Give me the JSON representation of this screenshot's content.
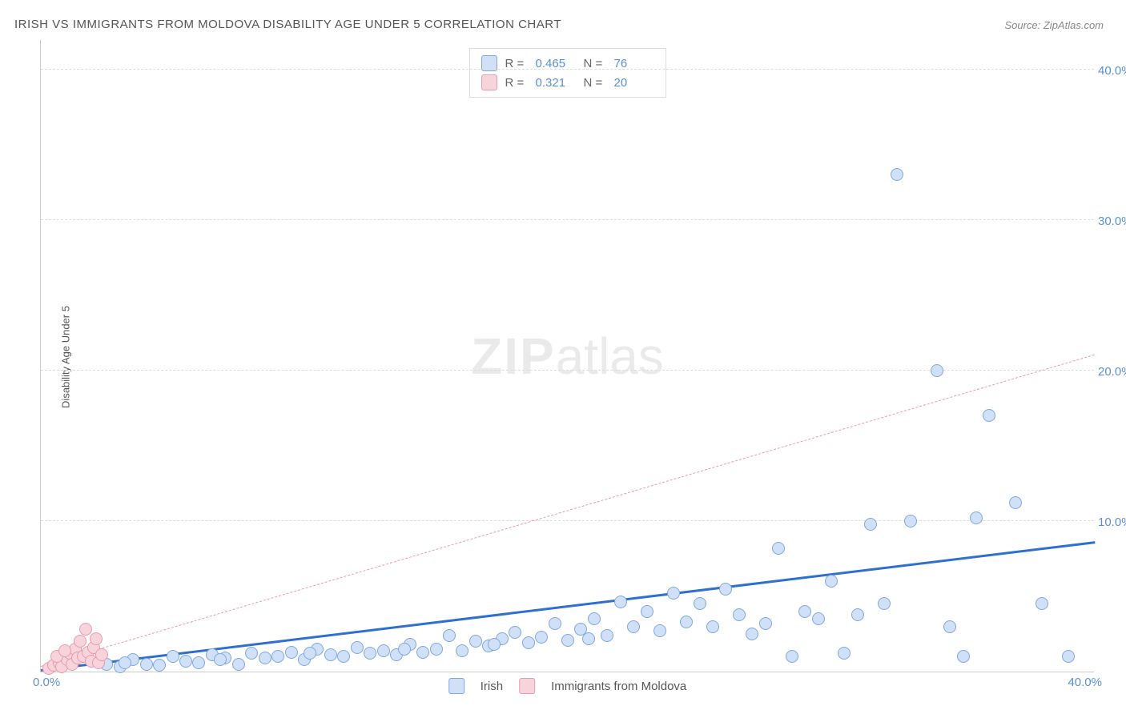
{
  "title": "IRISH VS IMMIGRANTS FROM MOLDOVA DISABILITY AGE UNDER 5 CORRELATION CHART",
  "source": "Source: ZipAtlas.com",
  "ylabel": "Disability Age Under 5",
  "watermark_bold": "ZIP",
  "watermark_light": "atlas",
  "chart": {
    "type": "scatter",
    "xlim": [
      0,
      40
    ],
    "ylim": [
      0,
      42
    ],
    "xtick_origin": "0.0%",
    "xtick_max": "40.0%",
    "yticks": [
      {
        "value": 10,
        "label": "10.0%"
      },
      {
        "value": 20,
        "label": "20.0%"
      },
      {
        "value": 30,
        "label": "30.0%"
      },
      {
        "value": 40,
        "label": "40.0%"
      }
    ],
    "grid_color": "#dddddd",
    "background_color": "#ffffff",
    "axis_color": "#cccccc",
    "tick_color": "#5b8fd6"
  },
  "series": [
    {
      "name": "Irish",
      "fill": "#cfe0f7",
      "stroke": "#7fa8dd",
      "marker_size": 16,
      "R": "0.465",
      "N": "76",
      "trend": {
        "x1": 0,
        "y1": 0,
        "x2": 40,
        "y2": 8.5,
        "color": "#2f6fd0",
        "width": 3,
        "dash": "solid"
      },
      "points": [
        [
          2.5,
          0.5
        ],
        [
          3,
          0.3
        ],
        [
          3.5,
          0.8
        ],
        [
          4,
          0.5
        ],
        [
          4.5,
          0.4
        ],
        [
          5,
          1.0
        ],
        [
          5.5,
          0.7
        ],
        [
          6,
          0.6
        ],
        [
          6.5,
          1.1
        ],
        [
          7,
          0.9
        ],
        [
          7.5,
          0.5
        ],
        [
          8,
          1.2
        ],
        [
          8.5,
          0.9
        ],
        [
          9,
          1.0
        ],
        [
          9.5,
          1.3
        ],
        [
          10,
          0.8
        ],
        [
          10.5,
          1.5
        ],
        [
          11,
          1.1
        ],
        [
          11.5,
          1.0
        ],
        [
          12,
          1.6
        ],
        [
          12.5,
          1.2
        ],
        [
          13,
          1.4
        ],
        [
          13.5,
          1.1
        ],
        [
          14,
          1.8
        ],
        [
          14.5,
          1.3
        ],
        [
          15,
          1.5
        ],
        [
          15.5,
          2.4
        ],
        [
          16,
          1.4
        ],
        [
          16.5,
          2.0
        ],
        [
          17,
          1.7
        ],
        [
          17.5,
          2.2
        ],
        [
          18,
          2.6
        ],
        [
          18.5,
          1.9
        ],
        [
          19,
          2.3
        ],
        [
          19.5,
          3.2
        ],
        [
          20,
          2.1
        ],
        [
          20.5,
          2.8
        ],
        [
          21,
          3.5
        ],
        [
          21.5,
          2.4
        ],
        [
          22,
          4.6
        ],
        [
          22.5,
          3.0
        ],
        [
          23,
          4.0
        ],
        [
          23.5,
          2.7
        ],
        [
          24,
          5.2
        ],
        [
          24.5,
          3.3
        ],
        [
          25,
          4.5
        ],
        [
          25.5,
          3.0
        ],
        [
          26,
          5.5
        ],
        [
          26.5,
          3.8
        ],
        [
          27,
          2.5
        ],
        [
          27.5,
          3.2
        ],
        [
          28,
          8.2
        ],
        [
          28.5,
          1.0
        ],
        [
          29,
          4.0
        ],
        [
          29.5,
          3.5
        ],
        [
          30,
          6.0
        ],
        [
          30.5,
          1.2
        ],
        [
          31,
          3.8
        ],
        [
          31.5,
          9.8
        ],
        [
          32,
          4.5
        ],
        [
          32.5,
          33.0
        ],
        [
          33,
          10.0
        ],
        [
          34,
          20.0
        ],
        [
          34.5,
          3.0
        ],
        [
          35,
          1.0
        ],
        [
          35.5,
          10.2
        ],
        [
          36,
          17.0
        ],
        [
          37,
          11.2
        ],
        [
          38,
          4.5
        ],
        [
          39,
          1.0
        ],
        [
          3.2,
          0.6
        ],
        [
          6.8,
          0.8
        ],
        [
          10.2,
          1.2
        ],
        [
          13.8,
          1.5
        ],
        [
          17.2,
          1.8
        ],
        [
          20.8,
          2.2
        ]
      ]
    },
    {
      "name": "Immigrants from Moldova",
      "fill": "#f7d3db",
      "stroke": "#e89ab0",
      "marker_size": 16,
      "R": "0.321",
      "N": "20",
      "trend": {
        "x1": 0,
        "y1": 0.3,
        "x2": 40,
        "y2": 21.0,
        "color": "#e89ab0",
        "width": 1,
        "dash": "dashed"
      },
      "points": [
        [
          0.3,
          0.2
        ],
        [
          0.5,
          0.4
        ],
        [
          0.7,
          0.6
        ],
        [
          0.8,
          0.3
        ],
        [
          1.0,
          0.8
        ],
        [
          1.1,
          1.2
        ],
        [
          1.2,
          0.5
        ],
        [
          1.3,
          1.5
        ],
        [
          1.4,
          0.9
        ],
        [
          1.5,
          2.0
        ],
        [
          1.6,
          1.0
        ],
        [
          1.7,
          2.8
        ],
        [
          1.8,
          1.3
        ],
        [
          1.9,
          0.7
        ],
        [
          2.0,
          1.6
        ],
        [
          2.1,
          2.2
        ],
        [
          2.2,
          0.6
        ],
        [
          2.3,
          1.1
        ],
        [
          0.6,
          1.0
        ],
        [
          0.9,
          1.4
        ]
      ]
    }
  ],
  "legend": {
    "items": [
      {
        "label": "Irish",
        "fill": "#cfe0f7",
        "stroke": "#7fa8dd"
      },
      {
        "label": "Immigrants from Moldova",
        "fill": "#f7d3db",
        "stroke": "#e89ab0"
      }
    ]
  }
}
